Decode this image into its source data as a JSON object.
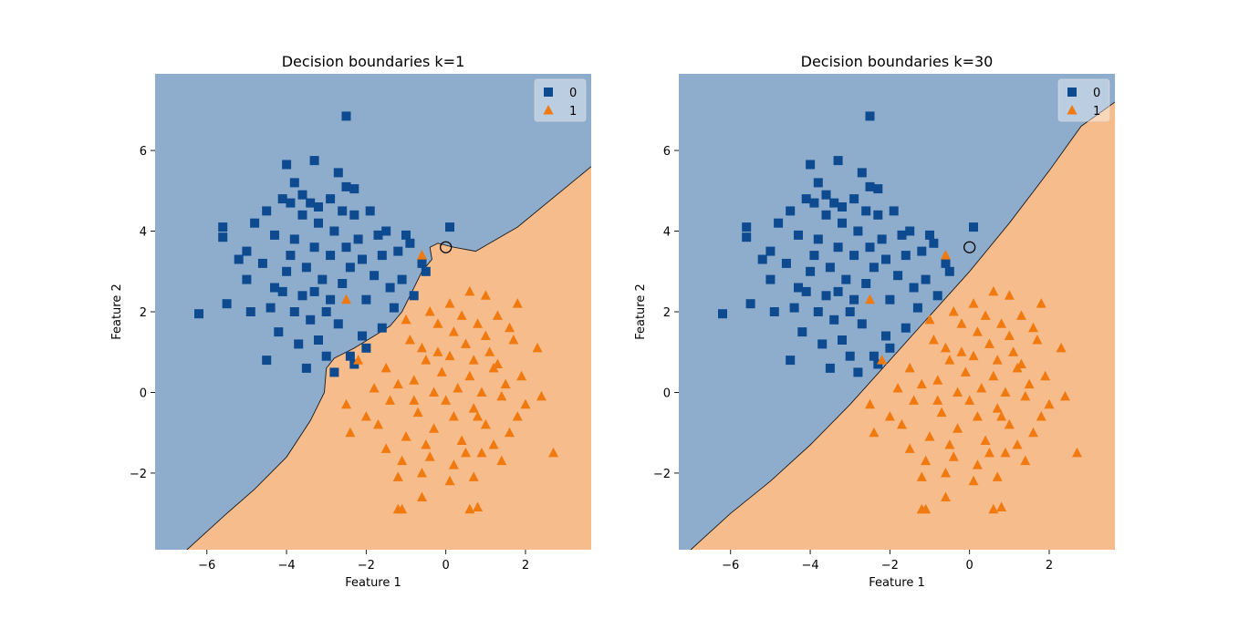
{
  "chart_data": [
    {
      "type": "scatter",
      "title": "Decision boundaries k=1",
      "xlabel": "Feature 1",
      "ylabel": "Feature 2",
      "xlim": [
        -7.3,
        3.65
      ],
      "ylim": [
        -3.9,
        7.9
      ],
      "xticks": [
        -6,
        -4,
        -2,
        0,
        2
      ],
      "yticks": [
        -2,
        0,
        2,
        4,
        6
      ],
      "xtick_labels": [
        "−6",
        "−4",
        "−2",
        "0",
        "2"
      ],
      "ytick_labels": [
        "−2",
        "0",
        "2",
        "4",
        "6"
      ],
      "legend": {
        "position": "upper-right",
        "entries": [
          "0",
          "1"
        ]
      },
      "colors": {
        "class0_marker": "#0d4a8f",
        "class1_marker": "#f07a10",
        "class0_region": "#8eaccb",
        "class1_region": "#f6bc8c"
      },
      "boundary": [
        [
          -6.5,
          -3.9
        ],
        [
          -5.5,
          -3.0
        ],
        [
          -4.8,
          -2.4
        ],
        [
          -4.0,
          -1.6
        ],
        [
          -3.4,
          -0.7
        ],
        [
          -3.05,
          0.0
        ],
        [
          -3.0,
          0.6
        ],
        [
          -2.8,
          0.85
        ],
        [
          -2.3,
          1.1
        ],
        [
          -1.8,
          1.4
        ],
        [
          -1.4,
          1.65
        ],
        [
          -1.1,
          2.0
        ],
        [
          -0.85,
          2.5
        ],
        [
          -0.6,
          3.0
        ],
        [
          -0.35,
          3.3
        ],
        [
          -0.4,
          3.6
        ],
        [
          -0.2,
          3.7
        ],
        [
          0.2,
          3.6
        ],
        [
          0.75,
          3.5
        ],
        [
          1.8,
          4.1
        ],
        [
          3.65,
          5.6
        ]
      ],
      "highlight_circle": [
        0.0,
        3.6
      ],
      "class0_points": [
        [
          -2.5,
          6.85
        ],
        [
          -4.0,
          5.65
        ],
        [
          -3.3,
          5.75
        ],
        [
          -2.7,
          5.45
        ],
        [
          -3.8,
          5.2
        ],
        [
          -2.5,
          5.1
        ],
        [
          -2.3,
          5.05
        ],
        [
          -6.2,
          1.95
        ],
        [
          -5.6,
          4.1
        ],
        [
          -5.6,
          3.85
        ],
        [
          -5.5,
          2.2
        ],
        [
          -5.2,
          3.3
        ],
        [
          -5.0,
          3.5
        ],
        [
          -5.0,
          2.8
        ],
        [
          -4.9,
          2.0
        ],
        [
          -4.5,
          0.8
        ],
        [
          -4.3,
          2.6
        ],
        [
          -4.2,
          1.5
        ],
        [
          -4.1,
          4.8
        ],
        [
          -3.9,
          4.7
        ],
        [
          -3.6,
          4.9
        ],
        [
          -3.4,
          4.7
        ],
        [
          -3.2,
          4.6
        ],
        [
          -2.9,
          4.8
        ],
        [
          -2.6,
          4.5
        ],
        [
          -2.3,
          4.4
        ],
        [
          -1.9,
          4.5
        ],
        [
          -1.7,
          3.9
        ],
        [
          -1.5,
          4.0
        ],
        [
          -1.2,
          3.5
        ],
        [
          -1.0,
          3.9
        ],
        [
          -0.9,
          3.7
        ],
        [
          -0.6,
          3.2
        ],
        [
          -0.5,
          3.0
        ],
        [
          0.1,
          4.1
        ],
        [
          -3.5,
          0.6
        ],
        [
          -3.0,
          0.9
        ],
        [
          -2.8,
          0.5
        ],
        [
          -2.3,
          0.7
        ],
        [
          -2.1,
          1.4
        ],
        [
          -1.6,
          1.6
        ],
        [
          -1.3,
          2.1
        ],
        [
          -3.2,
          1.3
        ],
        [
          -3.5,
          3.1
        ],
        [
          -3.1,
          2.8
        ],
        [
          -2.9,
          3.4
        ],
        [
          -3.6,
          2.4
        ],
        [
          -4.0,
          3.0
        ],
        [
          -2.6,
          2.7
        ],
        [
          -2.4,
          3.1
        ],
        [
          -3.3,
          3.6
        ],
        [
          -3.8,
          3.8
        ],
        [
          -2.0,
          2.3
        ],
        [
          -1.8,
          2.9
        ],
        [
          -4.4,
          2.1
        ],
        [
          -3.0,
          2.0
        ],
        [
          -2.7,
          1.7
        ],
        [
          -3.4,
          1.8
        ],
        [
          -4.6,
          3.2
        ],
        [
          -4.8,
          4.2
        ],
        [
          -2.2,
          3.8
        ],
        [
          -1.4,
          2.6
        ],
        [
          -0.8,
          2.4
        ],
        [
          -2.0,
          1.1
        ],
        [
          -2.4,
          0.9
        ],
        [
          -3.7,
          1.2
        ],
        [
          -4.1,
          2.5
        ],
        [
          -3.9,
          3.4
        ],
        [
          -3.2,
          4.2
        ],
        [
          -2.8,
          4.0
        ],
        [
          -2.5,
          3.6
        ],
        [
          -3.6,
          4.4
        ],
        [
          -4.3,
          3.9
        ],
        [
          -4.5,
          4.5
        ],
        [
          -2.1,
          3.3
        ],
        [
          -1.6,
          3.4
        ],
        [
          -1.1,
          2.8
        ],
        [
          -2.9,
          2.3
        ],
        [
          -3.3,
          2.5
        ],
        [
          -3.8,
          2.0
        ]
      ],
      "class1_points": [
        [
          -2.5,
          2.3
        ],
        [
          -0.6,
          1.1
        ],
        [
          -2.2,
          0.8
        ],
        [
          -0.6,
          3.4
        ],
        [
          0.1,
          2.2
        ],
        [
          0.6,
          2.5
        ],
        [
          1.0,
          2.4
        ],
        [
          1.8,
          2.2
        ],
        [
          -0.4,
          2.0
        ],
        [
          0.2,
          1.5
        ],
        [
          0.8,
          1.7
        ],
        [
          1.3,
          1.9
        ],
        [
          -0.9,
          1.3
        ],
        [
          -0.2,
          1.0
        ],
        [
          0.5,
          1.2
        ],
        [
          1.1,
          1.0
        ],
        [
          1.7,
          1.3
        ],
        [
          2.3,
          1.1
        ],
        [
          -1.5,
          0.6
        ],
        [
          -0.8,
          0.3
        ],
        [
          -0.1,
          0.5
        ],
        [
          0.6,
          0.4
        ],
        [
          1.2,
          0.6
        ],
        [
          1.9,
          0.4
        ],
        [
          -2.5,
          -0.3
        ],
        [
          -2.0,
          -0.6
        ],
        [
          -1.4,
          -0.2
        ],
        [
          -0.7,
          -0.5
        ],
        [
          0.0,
          -0.2
        ],
        [
          0.7,
          -0.4
        ],
        [
          1.4,
          -0.1
        ],
        [
          2.0,
          -0.3
        ],
        [
          2.4,
          -0.1
        ],
        [
          -2.4,
          -1.0
        ],
        [
          -1.7,
          -0.8
        ],
        [
          -1.0,
          -1.1
        ],
        [
          -0.3,
          -0.9
        ],
        [
          0.4,
          -1.2
        ],
        [
          1.0,
          -0.8
        ],
        [
          1.6,
          -1.0
        ],
        [
          2.7,
          -1.5
        ],
        [
          -1.1,
          -1.7
        ],
        [
          -0.4,
          -1.6
        ],
        [
          0.2,
          -1.8
        ],
        [
          0.9,
          -1.5
        ],
        [
          1.4,
          -1.7
        ],
        [
          -1.2,
          -2.1
        ],
        [
          -0.6,
          -2.0
        ],
        [
          0.1,
          -2.2
        ],
        [
          0.7,
          -2.1
        ],
        [
          -1.2,
          -2.9
        ],
        [
          -0.6,
          -2.6
        ],
        [
          0.6,
          -2.9
        ],
        [
          0.8,
          -2.85
        ],
        [
          -1.1,
          -2.9
        ],
        [
          -0.3,
          0.0
        ],
        [
          0.3,
          0.1
        ],
        [
          0.9,
          0.0
        ],
        [
          1.5,
          0.2
        ],
        [
          -0.5,
          0.8
        ],
        [
          0.1,
          0.9
        ],
        [
          0.7,
          0.8
        ],
        [
          1.3,
          0.7
        ],
        [
          -1.2,
          0.2
        ],
        [
          -0.8,
          -0.2
        ],
        [
          0.2,
          -0.6
        ],
        [
          0.8,
          -0.6
        ],
        [
          1.8,
          -0.6
        ],
        [
          -1.8,
          0.1
        ],
        [
          -0.2,
          1.7
        ],
        [
          0.4,
          1.9
        ],
        [
          1.0,
          1.4
        ],
        [
          1.6,
          1.6
        ],
        [
          -1.0,
          1.8
        ],
        [
          -0.5,
          -1.3
        ],
        [
          0.5,
          -1.5
        ],
        [
          1.2,
          -1.3
        ],
        [
          -1.5,
          -1.4
        ]
      ]
    },
    {
      "type": "scatter",
      "title": "Decision boundaries k=30",
      "xlabel": "Feature 1",
      "ylabel": "Feature 2",
      "xlim": [
        -7.3,
        3.65
      ],
      "ylim": [
        -3.9,
        7.9
      ],
      "xticks": [
        -6,
        -4,
        -2,
        0,
        2
      ],
      "yticks": [
        -2,
        0,
        2,
        4,
        6
      ],
      "xtick_labels": [
        "−6",
        "−4",
        "−2",
        "0",
        "2"
      ],
      "ytick_labels": [
        "−2",
        "0",
        "2",
        "4",
        "6"
      ],
      "legend": {
        "position": "upper-right",
        "entries": [
          "0",
          "1"
        ]
      },
      "colors": {
        "class0_marker": "#0d4a8f",
        "class1_marker": "#f07a10",
        "class0_region": "#8eaccb",
        "class1_region": "#f6bc8c"
      },
      "boundary": [
        [
          -7.0,
          -3.9
        ],
        [
          -6.0,
          -3.0
        ],
        [
          -5.0,
          -2.2
        ],
        [
          -4.0,
          -1.3
        ],
        [
          -3.0,
          -0.3
        ],
        [
          -2.0,
          0.8
        ],
        [
          -1.0,
          1.9
        ],
        [
          0.0,
          3.0
        ],
        [
          1.0,
          4.2
        ],
        [
          2.0,
          5.5
        ],
        [
          2.8,
          6.6
        ],
        [
          3.65,
          7.2
        ]
      ],
      "highlight_circle": [
        0.0,
        3.6
      ],
      "class0_points": [
        [
          -2.5,
          6.85
        ],
        [
          -4.0,
          5.65
        ],
        [
          -3.3,
          5.75
        ],
        [
          -2.7,
          5.45
        ],
        [
          -3.8,
          5.2
        ],
        [
          -2.5,
          5.1
        ],
        [
          -2.3,
          5.05
        ],
        [
          -6.2,
          1.95
        ],
        [
          -5.6,
          4.1
        ],
        [
          -5.6,
          3.85
        ],
        [
          -5.5,
          2.2
        ],
        [
          -5.2,
          3.3
        ],
        [
          -5.0,
          3.5
        ],
        [
          -5.0,
          2.8
        ],
        [
          -4.9,
          2.0
        ],
        [
          -4.5,
          0.8
        ],
        [
          -4.3,
          2.6
        ],
        [
          -4.2,
          1.5
        ],
        [
          -4.1,
          4.8
        ],
        [
          -3.9,
          4.7
        ],
        [
          -3.6,
          4.9
        ],
        [
          -3.4,
          4.7
        ],
        [
          -3.2,
          4.6
        ],
        [
          -2.9,
          4.8
        ],
        [
          -2.6,
          4.5
        ],
        [
          -2.3,
          4.4
        ],
        [
          -1.9,
          4.5
        ],
        [
          -1.7,
          3.9
        ],
        [
          -1.5,
          4.0
        ],
        [
          -1.2,
          3.5
        ],
        [
          -1.0,
          3.9
        ],
        [
          -0.9,
          3.7
        ],
        [
          -0.6,
          3.2
        ],
        [
          -0.5,
          3.0
        ],
        [
          0.1,
          4.1
        ],
        [
          -3.5,
          0.6
        ],
        [
          -3.0,
          0.9
        ],
        [
          -2.8,
          0.5
        ],
        [
          -2.3,
          0.7
        ],
        [
          -2.1,
          1.4
        ],
        [
          -1.6,
          1.6
        ],
        [
          -1.3,
          2.1
        ],
        [
          -3.2,
          1.3
        ],
        [
          -3.5,
          3.1
        ],
        [
          -3.1,
          2.8
        ],
        [
          -2.9,
          3.4
        ],
        [
          -3.6,
          2.4
        ],
        [
          -4.0,
          3.0
        ],
        [
          -2.6,
          2.7
        ],
        [
          -2.4,
          3.1
        ],
        [
          -3.3,
          3.6
        ],
        [
          -3.8,
          3.8
        ],
        [
          -2.0,
          2.3
        ],
        [
          -1.8,
          2.9
        ],
        [
          -4.4,
          2.1
        ],
        [
          -3.0,
          2.0
        ],
        [
          -2.7,
          1.7
        ],
        [
          -3.4,
          1.8
        ],
        [
          -4.6,
          3.2
        ],
        [
          -4.8,
          4.2
        ],
        [
          -2.2,
          3.8
        ],
        [
          -1.4,
          2.6
        ],
        [
          -0.8,
          2.4
        ],
        [
          -2.0,
          1.1
        ],
        [
          -2.4,
          0.9
        ],
        [
          -3.7,
          1.2
        ],
        [
          -4.1,
          2.5
        ],
        [
          -3.9,
          3.4
        ],
        [
          -3.2,
          4.2
        ],
        [
          -2.8,
          4.0
        ],
        [
          -2.5,
          3.6
        ],
        [
          -3.6,
          4.4
        ],
        [
          -4.3,
          3.9
        ],
        [
          -4.5,
          4.5
        ],
        [
          -2.1,
          3.3
        ],
        [
          -1.6,
          3.4
        ],
        [
          -1.1,
          2.8
        ],
        [
          -2.9,
          2.3
        ],
        [
          -3.3,
          2.5
        ],
        [
          -3.8,
          2.0
        ]
      ],
      "class1_points": [
        [
          -2.5,
          2.3
        ],
        [
          -0.6,
          1.1
        ],
        [
          -2.2,
          0.8
        ],
        [
          -0.6,
          3.4
        ],
        [
          0.1,
          2.2
        ],
        [
          0.6,
          2.5
        ],
        [
          1.0,
          2.4
        ],
        [
          1.8,
          2.2
        ],
        [
          -0.4,
          2.0
        ],
        [
          0.2,
          1.5
        ],
        [
          0.8,
          1.7
        ],
        [
          1.3,
          1.9
        ],
        [
          -0.9,
          1.3
        ],
        [
          -0.2,
          1.0
        ],
        [
          0.5,
          1.2
        ],
        [
          1.1,
          1.0
        ],
        [
          1.7,
          1.3
        ],
        [
          2.3,
          1.1
        ],
        [
          -1.5,
          0.6
        ],
        [
          -0.8,
          0.3
        ],
        [
          -0.1,
          0.5
        ],
        [
          0.6,
          0.4
        ],
        [
          1.2,
          0.6
        ],
        [
          1.9,
          0.4
        ],
        [
          -2.5,
          -0.3
        ],
        [
          -2.0,
          -0.6
        ],
        [
          -1.4,
          -0.2
        ],
        [
          -0.7,
          -0.5
        ],
        [
          0.0,
          -0.2
        ],
        [
          0.7,
          -0.4
        ],
        [
          1.4,
          -0.1
        ],
        [
          2.0,
          -0.3
        ],
        [
          2.4,
          -0.1
        ],
        [
          -2.4,
          -1.0
        ],
        [
          -1.7,
          -0.8
        ],
        [
          -1.0,
          -1.1
        ],
        [
          -0.3,
          -0.9
        ],
        [
          0.4,
          -1.2
        ],
        [
          1.0,
          -0.8
        ],
        [
          1.6,
          -1.0
        ],
        [
          2.7,
          -1.5
        ],
        [
          -1.1,
          -1.7
        ],
        [
          -0.4,
          -1.6
        ],
        [
          0.2,
          -1.8
        ],
        [
          0.9,
          -1.5
        ],
        [
          1.4,
          -1.7
        ],
        [
          -1.2,
          -2.1
        ],
        [
          -0.6,
          -2.0
        ],
        [
          0.1,
          -2.2
        ],
        [
          0.7,
          -2.1
        ],
        [
          -1.2,
          -2.9
        ],
        [
          -0.6,
          -2.6
        ],
        [
          0.6,
          -2.9
        ],
        [
          0.8,
          -2.85
        ],
        [
          -1.1,
          -2.9
        ],
        [
          -0.3,
          0.0
        ],
        [
          0.3,
          0.1
        ],
        [
          0.9,
          0.0
        ],
        [
          1.5,
          0.2
        ],
        [
          -0.5,
          0.8
        ],
        [
          0.1,
          0.9
        ],
        [
          0.7,
          0.8
        ],
        [
          1.3,
          0.7
        ],
        [
          -1.2,
          0.2
        ],
        [
          -0.8,
          -0.2
        ],
        [
          0.2,
          -0.6
        ],
        [
          0.8,
          -0.6
        ],
        [
          1.8,
          -0.6
        ],
        [
          -1.8,
          0.1
        ],
        [
          -0.2,
          1.7
        ],
        [
          0.4,
          1.9
        ],
        [
          1.0,
          1.4
        ],
        [
          1.6,
          1.6
        ],
        [
          -1.0,
          1.8
        ],
        [
          -0.5,
          -1.3
        ],
        [
          0.5,
          -1.5
        ],
        [
          1.2,
          -1.3
        ],
        [
          -1.5,
          -1.4
        ]
      ]
    }
  ]
}
